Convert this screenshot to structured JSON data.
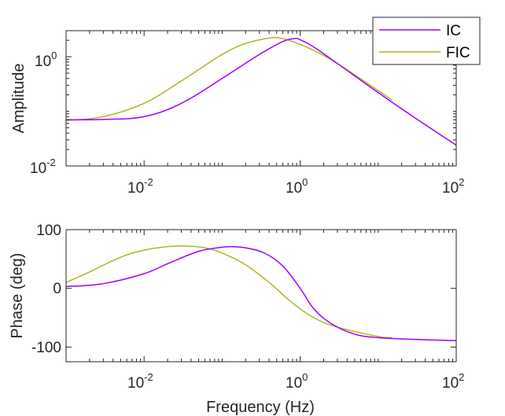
{
  "chart_data": [
    {
      "type": "line",
      "xscale": "log",
      "yscale": "log",
      "xlim": [
        0.001,
        100
      ],
      "ylim": [
        0.01,
        3
      ],
      "x_ticks": [
        "10-2",
        "100",
        "102"
      ],
      "y_ticks": [
        "10-2",
        "100"
      ],
      "xlabel": "",
      "ylabel": "Amplitude",
      "grid": false,
      "legend": "top-right",
      "series": [
        {
          "name": "IC",
          "color": "#a100ff",
          "x": [
            0.001,
            0.003,
            0.01,
            0.03,
            0.1,
            0.3,
            0.6,
            0.85,
            1,
            1.5,
            3,
            10,
            30,
            100
          ],
          "y": [
            0.07,
            0.071,
            0.08,
            0.14,
            0.4,
            1.1,
            1.9,
            2.15,
            2.05,
            1.5,
            0.75,
            0.22,
            0.075,
            0.024
          ]
        },
        {
          "name": "FIC",
          "color": "#b5b41e",
          "x": [
            0.001,
            0.003,
            0.01,
            0.03,
            0.1,
            0.2,
            0.4,
            0.55,
            0.8,
            1.5,
            3,
            10,
            15
          ],
          "y": [
            0.068,
            0.08,
            0.14,
            0.36,
            1.1,
            1.75,
            2.2,
            2.2,
            1.9,
            1.3,
            0.75,
            0.24,
            0.16
          ]
        }
      ]
    },
    {
      "type": "line",
      "xscale": "log",
      "xlim": [
        0.001,
        100
      ],
      "ylim": [
        -125,
        100
      ],
      "x_ticks": [
        "10-2",
        "100",
        "102"
      ],
      "y_ticks": [
        "100",
        "0",
        "-100"
      ],
      "xlabel": "Frequency (Hz)",
      "ylabel": "Phase (deg)",
      "grid": false,
      "series": [
        {
          "name": "IC",
          "color": "#a100ff",
          "x": [
            0.001,
            0.003,
            0.01,
            0.02,
            0.05,
            0.1,
            0.13,
            0.2,
            0.35,
            0.6,
            1,
            1.5,
            2.5,
            5,
            10,
            30,
            100
          ],
          "y": [
            3,
            8,
            25,
            42,
            63,
            70,
            71,
            69,
            60,
            38,
            0,
            -35,
            -60,
            -78,
            -84,
            -87,
            -89
          ]
        },
        {
          "name": "FIC",
          "color": "#b5b41e",
          "x": [
            0.001,
            0.002,
            0.005,
            0.01,
            0.02,
            0.035,
            0.06,
            0.1,
            0.2,
            0.4,
            0.8,
            1.5,
            3,
            10,
            15
          ],
          "y": [
            10,
            28,
            53,
            65,
            71,
            72,
            69,
            60,
            40,
            10,
            -25,
            -50,
            -66,
            -82,
            -84
          ]
        }
      ]
    }
  ]
}
